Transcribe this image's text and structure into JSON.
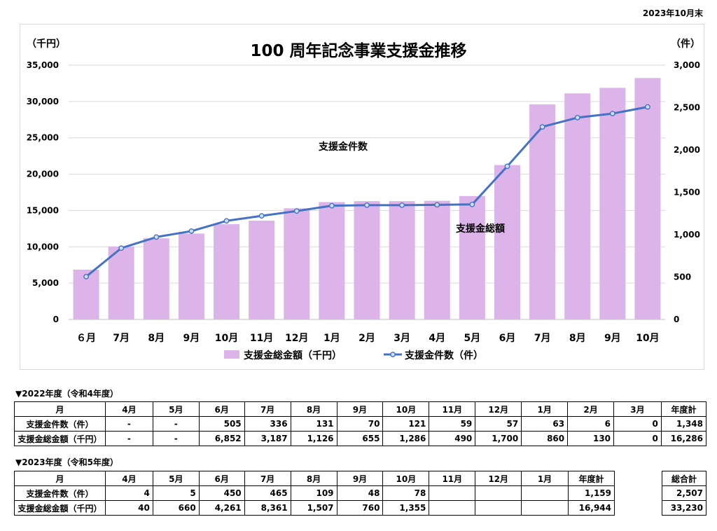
{
  "as_of": "2023年10月末",
  "chart_data": {
    "type": "bar+line",
    "title": "100 周年記念事業支援金推移",
    "categories": [
      "６月",
      "7月",
      "8月",
      "9月",
      "10月",
      "11月",
      "12月",
      "1月",
      "2月",
      "3月",
      "4月",
      "5月",
      "6月",
      "7月",
      "8月",
      "9月",
      "10月"
    ],
    "left_axis": {
      "unit_label": "（千円）",
      "min": 0,
      "max": 35000,
      "ticks": [
        0,
        5000,
        10000,
        15000,
        20000,
        25000,
        30000,
        35000
      ],
      "tick_labels": [
        "0",
        "5,000",
        "10,000",
        "15,000",
        "20,000",
        "25,000",
        "30,000",
        "35,000"
      ]
    },
    "right_axis": {
      "unit_label": "（件）",
      "min": 0,
      "max": 3000,
      "ticks": [
        0,
        500,
        1000,
        1500,
        2000,
        2500,
        3000
      ],
      "tick_labels": [
        "0",
        "500",
        "1,000",
        "1,500",
        "2,000",
        "2,500",
        "3,000"
      ]
    },
    "series": [
      {
        "name": "支援金総金額（千円）",
        "type": "bar",
        "axis": "left",
        "color": "#dcb4ea",
        "values": [
          6852,
          10039,
          11165,
          11820,
          13106,
          13596,
          15296,
          16156,
          16286,
          16286,
          16326,
          16986,
          21247,
          29608,
          31115,
          31875,
          33230
        ]
      },
      {
        "name": "支援金件数（件）",
        "type": "line",
        "axis": "right",
        "color": "#4472c4",
        "values": [
          505,
          841,
          972,
          1042,
          1163,
          1222,
          1279,
          1342,
          1348,
          1348,
          1352,
          1357,
          1807,
          2272,
          2381,
          2429,
          2507
        ]
      }
    ],
    "annotations": [
      "支援金件数",
      "支援金総額"
    ],
    "legend_position": "bottom",
    "grid": true
  },
  "tables": {
    "fy2022": {
      "section_title": "▼2022年度（令和4年度）",
      "headers": [
        "月",
        "4月",
        "5月",
        "6月",
        "7月",
        "8月",
        "9月",
        "10月",
        "11月",
        "12月",
        "1月",
        "2月",
        "3月",
        "年度計"
      ],
      "rows": [
        [
          "支援金件数（件）",
          "-",
          "-",
          "505",
          "336",
          "131",
          "70",
          "121",
          "59",
          "57",
          "63",
          "6",
          "0",
          "1,348"
        ],
        [
          "支援金総金額（千円）",
          "-",
          "-",
          "6,852",
          "3,187",
          "1,126",
          "655",
          "1,286",
          "490",
          "1,700",
          "860",
          "130",
          "0",
          "16,286"
        ]
      ]
    },
    "fy2023": {
      "section_title": "▼2023年度（令和5年度）",
      "headers": [
        "月",
        "4月",
        "5月",
        "6月",
        "7月",
        "8月",
        "9月",
        "10月",
        "11月",
        "12月",
        "1月",
        "年度計"
      ],
      "rows": [
        [
          "支援金件数（件）",
          "4",
          "5",
          "450",
          "465",
          "109",
          "48",
          "78",
          "",
          "",
          "",
          "1,159"
        ],
        [
          "支援金総金額（千円）",
          "40",
          "660",
          "4,261",
          "8,361",
          "1,507",
          "760",
          "1,355",
          "",
          "",
          "",
          "16,944"
        ]
      ]
    },
    "grand_total": {
      "header": "総合計",
      "values": [
        "2,507",
        "33,230"
      ]
    }
  }
}
